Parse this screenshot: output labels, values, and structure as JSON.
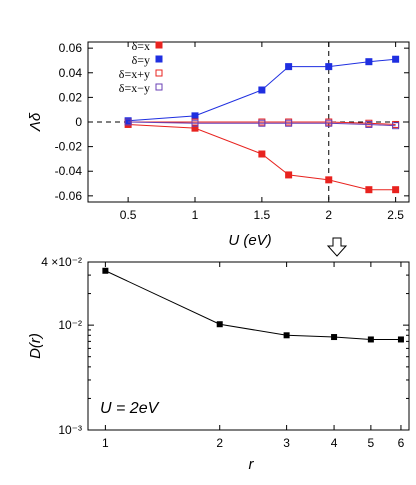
{
  "chart_data": [
    {
      "type": "line",
      "xlabel": "U (eV)",
      "ylabel": "Λδ",
      "xlim": [
        0.2,
        2.6
      ],
      "ylim": [
        -0.065,
        0.065
      ],
      "x_ticks": [
        "0.5",
        "1",
        "1.5",
        "2",
        "2.5"
      ],
      "y_ticks": [
        "0.06",
        "0.04",
        "0.02",
        "0",
        "-0.02",
        "-0.04",
        "-0.06"
      ],
      "x": [
        0.5,
        1.0,
        1.5,
        1.7,
        2.0,
        2.3,
        2.5
      ],
      "series": [
        {
          "name": "δ=x",
          "color": "#e8231f",
          "marker": "filled-square",
          "values": [
            -0.002,
            -0.005,
            -0.026,
            -0.043,
            -0.047,
            -0.055,
            -0.055
          ]
        },
        {
          "name": "δ=y",
          "color": "#1f2fe0",
          "marker": "filled-square",
          "values": [
            0.001,
            0.005,
            0.026,
            0.045,
            0.045,
            0.049,
            0.051
          ]
        },
        {
          "name": "δ=x+y",
          "color": "#e8231f",
          "marker": "open-square",
          "values": [
            0.0,
            0.0,
            0.0,
            0.0,
            0.0,
            -0.001,
            -0.002
          ]
        },
        {
          "name": "δ=x−y",
          "color": "#6a3fb5",
          "marker": "open-square",
          "values": [
            0.0,
            -0.001,
            -0.001,
            -0.001,
            -0.001,
            -0.002,
            -0.003
          ]
        }
      ],
      "grid": false,
      "legend_position": "top-left",
      "reference_lines": {
        "horizontal_dashed_at": 0,
        "vertical_dashed_at": 2.0
      }
    },
    {
      "type": "line",
      "xlabel": "r",
      "ylabel": "D(r)",
      "scale": "log-log",
      "xlim": [
        0.9,
        6.3
      ],
      "ylim": [
        0.001,
        0.04
      ],
      "x_ticks": [
        "1",
        "2",
        "3",
        "4",
        "5",
        "6"
      ],
      "y_ticks": [
        "4 ×10⁻²",
        "10⁻²",
        "10⁻³"
      ],
      "x": [
        1,
        2,
        3,
        4,
        5,
        6
      ],
      "series": [
        {
          "color": "#000000",
          "marker": "filled-square",
          "values": [
            0.033,
            0.0102,
            0.008,
            0.0077,
            0.0073,
            0.0073
          ]
        }
      ],
      "annotation": "U = 2eV",
      "grid": false
    }
  ]
}
